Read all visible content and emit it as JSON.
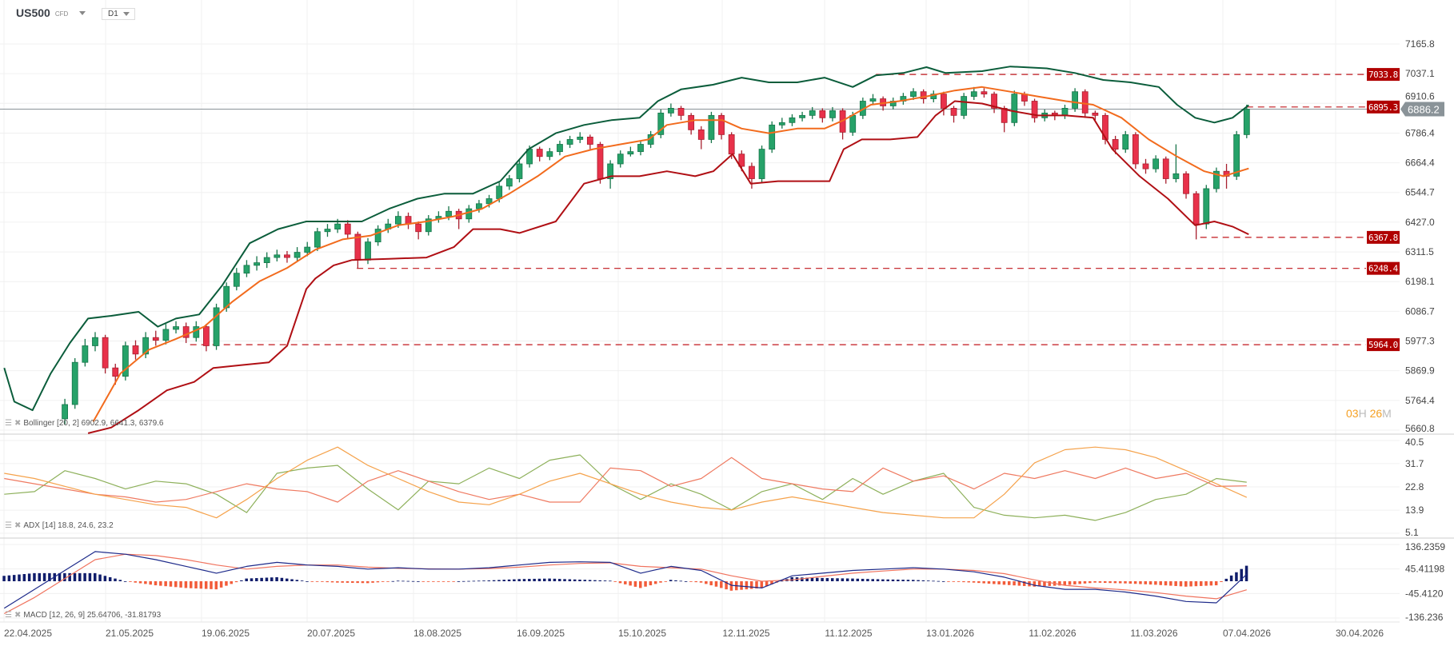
{
  "header": {
    "symbol": "US500",
    "instrument_type": "CFD",
    "timeframe": "D1"
  },
  "colors": {
    "up": "#26a269",
    "down": "#e8314a",
    "bb_upper": "#0b5d3b",
    "bb_middle": "#f26b1d",
    "bb_lower": "#b00f14",
    "level": "#c0161b",
    "last_price": "#8a9398",
    "adx": "#f5a24b",
    "plus_di": "#8db05a",
    "minus_di": "#ef7a61",
    "macd": "#1d2a8a",
    "signal": "#f0735e",
    "hist_pos": "#101d6b",
    "hist_neg": "#f25c3a"
  },
  "indicators": {
    "bollinger": {
      "label": "Bollinger [20, 2] 6902.9, 6641.3, 6379.6"
    },
    "adx": {
      "label": "ADX [14] 18.8, 24.6, 23.2"
    },
    "macd": {
      "label": "MACD [12, 26, 9] 25.64706, -31.81793"
    }
  },
  "countdown": {
    "hours": "03",
    "h": "H",
    "minutes": "26",
    "m": "M"
  },
  "chart_data": {
    "type": "candlestick",
    "price_scale": "log",
    "ylim": [
      5660.8,
      7165.8
    ],
    "y_ticks": [
      "7165.8",
      "7037.1",
      "6910.6",
      "6786.4",
      "6664.4",
      "6544.7",
      "6427.0",
      "6311.5",
      "6198.1",
      "6086.7",
      "5977.3",
      "5869.9",
      "5764.4",
      "5660.8"
    ],
    "x_ticks": [
      "22.04.2025",
      "21.05.2025",
      "19.06.2025",
      "20.07.2025",
      "18.08.2025",
      "16.09.2025",
      "15.10.2025",
      "12.11.2025",
      "11.12.2025",
      "13.01.2026",
      "11.02.2026",
      "11.03.2026",
      "07.04.2026",
      "30.04.2026"
    ],
    "last_price": "6886.2",
    "levels": [
      {
        "value": "7033.8",
        "from_bar": 80.3
      },
      {
        "value": "6895.3",
        "from_bar": 117
      },
      {
        "value": "6367.8",
        "from_bar": 112.4
      },
      {
        "value": "6248.4",
        "from_bar": 28.9
      },
      {
        "value": "5964.0",
        "from_bar": 12.4
      }
    ],
    "candles_ohlc": [
      [
        5700,
        5770,
        5680,
        5750
      ],
      [
        5750,
        5915,
        5735,
        5900
      ],
      [
        5900,
        5985,
        5885,
        5960
      ],
      [
        5960,
        6010,
        5940,
        5990
      ],
      [
        5990,
        6000,
        5860,
        5880
      ],
      [
        5880,
        5895,
        5820,
        5850
      ],
      [
        5850,
        5975,
        5835,
        5960
      ],
      [
        5960,
        5980,
        5910,
        5930
      ],
      [
        5930,
        6010,
        5915,
        5990
      ],
      [
        5990,
        6015,
        5960,
        5980
      ],
      [
        5980,
        6040,
        5965,
        6020
      ],
      [
        6020,
        6050,
        6005,
        6030
      ],
      [
        6030,
        6045,
        5970,
        5990
      ],
      [
        5990,
        6050,
        5975,
        6030
      ],
      [
        6030,
        6040,
        5940,
        5960
      ],
      [
        5960,
        6115,
        5945,
        6100
      ],
      [
        6100,
        6195,
        6085,
        6180
      ],
      [
        6180,
        6250,
        6165,
        6230
      ],
      [
        6230,
        6280,
        6215,
        6260
      ],
      [
        6260,
        6295,
        6240,
        6270
      ],
      [
        6270,
        6310,
        6250,
        6290
      ],
      [
        6290,
        6320,
        6275,
        6300
      ],
      [
        6300,
        6315,
        6270,
        6290
      ],
      [
        6290,
        6330,
        6275,
        6310
      ],
      [
        6310,
        6350,
        6295,
        6330
      ],
      [
        6330,
        6405,
        6315,
        6390
      ],
      [
        6390,
        6420,
        6370,
        6400
      ],
      [
        6400,
        6440,
        6385,
        6420
      ],
      [
        6420,
        6435,
        6360,
        6380
      ],
      [
        6380,
        6390,
        6250,
        6280
      ],
      [
        6280,
        6365,
        6265,
        6350
      ],
      [
        6350,
        6415,
        6335,
        6400
      ],
      [
        6400,
        6440,
        6385,
        6420
      ],
      [
        6420,
        6470,
        6405,
        6450
      ],
      [
        6450,
        6465,
        6400,
        6420
      ],
      [
        6420,
        6430,
        6360,
        6390
      ],
      [
        6390,
        6455,
        6375,
        6440
      ],
      [
        6440,
        6470,
        6425,
        6450
      ],
      [
        6450,
        6490,
        6435,
        6470
      ],
      [
        6470,
        6480,
        6400,
        6440
      ],
      [
        6440,
        6495,
        6425,
        6480
      ],
      [
        6480,
        6515,
        6465,
        6500
      ],
      [
        6500,
        6535,
        6485,
        6520
      ],
      [
        6520,
        6585,
        6505,
        6570
      ],
      [
        6570,
        6615,
        6555,
        6600
      ],
      [
        6600,
        6675,
        6585,
        6660
      ],
      [
        6660,
        6735,
        6645,
        6720
      ],
      [
        6720,
        6730,
        6670,
        6690
      ],
      [
        6690,
        6725,
        6675,
        6710
      ],
      [
        6710,
        6755,
        6695,
        6740
      ],
      [
        6740,
        6775,
        6725,
        6760
      ],
      [
        6760,
        6790,
        6745,
        6770
      ],
      [
        6770,
        6780,
        6720,
        6740
      ],
      [
        6740,
        6750,
        6580,
        6600
      ],
      [
        6600,
        6675,
        6560,
        6660
      ],
      [
        6660,
        6715,
        6645,
        6700
      ],
      [
        6700,
        6730,
        6690,
        6710
      ],
      [
        6710,
        6755,
        6695,
        6740
      ],
      [
        6740,
        6795,
        6725,
        6780
      ],
      [
        6780,
        6885,
        6765,
        6870
      ],
      [
        6870,
        6910,
        6855,
        6890
      ],
      [
        6890,
        6900,
        6840,
        6860
      ],
      [
        6860,
        6870,
        6780,
        6800
      ],
      [
        6800,
        6815,
        6720,
        6760
      ],
      [
        6760,
        6875,
        6745,
        6860
      ],
      [
        6860,
        6870,
        6760,
        6780
      ],
      [
        6780,
        6790,
        6680,
        6700
      ],
      [
        6700,
        6715,
        6630,
        6650
      ],
      [
        6650,
        6665,
        6560,
        6600
      ],
      [
        6600,
        6735,
        6585,
        6720
      ],
      [
        6720,
        6835,
        6705,
        6820
      ],
      [
        6820,
        6850,
        6805,
        6830
      ],
      [
        6830,
        6865,
        6815,
        6850
      ],
      [
        6850,
        6875,
        6835,
        6860
      ],
      [
        6860,
        6895,
        6845,
        6880
      ],
      [
        6880,
        6890,
        6830,
        6850
      ],
      [
        6850,
        6895,
        6835,
        6880
      ],
      [
        6880,
        6890,
        6760,
        6790
      ],
      [
        6790,
        6875,
        6775,
        6860
      ],
      [
        6860,
        6935,
        6845,
        6920
      ],
      [
        6920,
        6950,
        6905,
        6930
      ],
      [
        6930,
        6940,
        6880,
        6900
      ],
      [
        6900,
        6935,
        6885,
        6920
      ],
      [
        6920,
        6955,
        6905,
        6940
      ],
      [
        6940,
        6975,
        6925,
        6960
      ],
      [
        6960,
        6970,
        6910,
        6930
      ],
      [
        6930,
        6965,
        6915,
        6950
      ],
      [
        6950,
        6960,
        6860,
        6890
      ],
      [
        6890,
        6900,
        6830,
        6860
      ],
      [
        6860,
        6955,
        6845,
        6940
      ],
      [
        6940,
        6980,
        6925,
        6960
      ],
      [
        6960,
        6975,
        6935,
        6950
      ],
      [
        6950,
        6960,
        6870,
        6890
      ],
      [
        6890,
        6900,
        6790,
        6830
      ],
      [
        6830,
        6965,
        6815,
        6950
      ],
      [
        6950,
        6960,
        6900,
        6920
      ],
      [
        6920,
        6930,
        6830,
        6850
      ],
      [
        6850,
        6885,
        6835,
        6870
      ],
      [
        6870,
        6880,
        6840,
        6860
      ],
      [
        6860,
        6905,
        6845,
        6890
      ],
      [
        6890,
        6975,
        6875,
        6960
      ],
      [
        6960,
        6970,
        6850,
        6870
      ],
      [
        6870,
        6880,
        6840,
        6860
      ],
      [
        6860,
        6870,
        6740,
        6760
      ],
      [
        6760,
        6775,
        6700,
        6720
      ],
      [
        6720,
        6795,
        6705,
        6780
      ],
      [
        6780,
        6790,
        6640,
        6660
      ],
      [
        6660,
        6680,
        6620,
        6640
      ],
      [
        6640,
        6695,
        6625,
        6680
      ],
      [
        6680,
        6690,
        6580,
        6600
      ],
      [
        6600,
        6740,
        6585,
        6620
      ],
      [
        6620,
        6630,
        6520,
        6540
      ],
      [
        6540,
        6550,
        6360,
        6420
      ],
      [
        6420,
        6575,
        6400,
        6560
      ],
      [
        6560,
        6645,
        6545,
        6630
      ],
      [
        6630,
        6660,
        6560,
        6610
      ],
      [
        6610,
        6795,
        6595,
        6780
      ],
      [
        6780,
        6905,
        6765,
        6886
      ]
    ],
    "bollinger_upper": [
      [
        -6,
        5880
      ],
      [
        -5,
        5760
      ],
      [
        -3.2,
        5730
      ],
      [
        -1.4,
        5860
      ],
      [
        0.5,
        5970
      ],
      [
        2.3,
        6060
      ],
      [
        4.6,
        6070
      ],
      [
        7.3,
        6085
      ],
      [
        9.2,
        6030
      ],
      [
        11,
        6060
      ],
      [
        13.3,
        6075
      ],
      [
        15.6,
        6185
      ],
      [
        18.3,
        6345
      ],
      [
        21.1,
        6400
      ],
      [
        23.9,
        6430
      ],
      [
        26.6,
        6430
      ],
      [
        29.4,
        6430
      ],
      [
        32.1,
        6480
      ],
      [
        34.9,
        6520
      ],
      [
        37.6,
        6540
      ],
      [
        40.4,
        6540
      ],
      [
        43.1,
        6590
      ],
      [
        45.9,
        6720
      ],
      [
        48.6,
        6786
      ],
      [
        51.4,
        6820
      ],
      [
        54.1,
        6840
      ],
      [
        56.9,
        6850
      ],
      [
        58.7,
        6920
      ],
      [
        61,
        6970
      ],
      [
        64.2,
        6990
      ],
      [
        67,
        7020
      ],
      [
        69.7,
        7000
      ],
      [
        72.5,
        7000
      ],
      [
        75.2,
        7020
      ],
      [
        78,
        6980
      ],
      [
        80.3,
        7030
      ],
      [
        83,
        7040
      ],
      [
        85.3,
        7065
      ],
      [
        87.2,
        7040
      ],
      [
        90.8,
        7048
      ],
      [
        93.6,
        7068
      ],
      [
        97.2,
        7060
      ],
      [
        100,
        7040
      ],
      [
        102.8,
        7010
      ],
      [
        105.5,
        7000
      ],
      [
        108.3,
        6980
      ],
      [
        110.1,
        6905
      ],
      [
        111.9,
        6850
      ],
      [
        113.8,
        6830
      ],
      [
        115.6,
        6850
      ],
      [
        117.2,
        6902.9
      ]
    ],
    "bollinger_middle": [
      [
        2.8,
        5690
      ],
      [
        5.5,
        5860
      ],
      [
        8.3,
        5945
      ],
      [
        11,
        5985
      ],
      [
        13.8,
        6030
      ],
      [
        16.5,
        6120
      ],
      [
        19.3,
        6200
      ],
      [
        22,
        6250
      ],
      [
        24.8,
        6320
      ],
      [
        27.5,
        6360
      ],
      [
        30.3,
        6375
      ],
      [
        33,
        6415
      ],
      [
        35.8,
        6430
      ],
      [
        38.5,
        6450
      ],
      [
        41.3,
        6480
      ],
      [
        44,
        6540
      ],
      [
        46.8,
        6610
      ],
      [
        49.5,
        6690
      ],
      [
        52.3,
        6720
      ],
      [
        55,
        6740
      ],
      [
        57.8,
        6760
      ],
      [
        59.6,
        6820
      ],
      [
        62.4,
        6840
      ],
      [
        65.1,
        6840
      ],
      [
        67,
        6805
      ],
      [
        69.7,
        6786
      ],
      [
        72.5,
        6805
      ],
      [
        75.2,
        6805
      ],
      [
        77.1,
        6840
      ],
      [
        79.8,
        6905
      ],
      [
        82.6,
        6920
      ],
      [
        85.3,
        6940
      ],
      [
        88.1,
        6965
      ],
      [
        90.8,
        6980
      ],
      [
        93.6,
        6960
      ],
      [
        96.3,
        6940
      ],
      [
        99.1,
        6920
      ],
      [
        101.8,
        6905
      ],
      [
        104.6,
        6850
      ],
      [
        107.3,
        6760
      ],
      [
        110.1,
        6690
      ],
      [
        112.8,
        6630
      ],
      [
        114.7,
        6610
      ],
      [
        117.2,
        6641.3
      ]
    ],
    "bollinger_lower": [
      [
        2.3,
        5650
      ],
      [
        4.6,
        5670
      ],
      [
        7.3,
        5730
      ],
      [
        10.1,
        5800
      ],
      [
        12.8,
        5830
      ],
      [
        14.7,
        5880
      ],
      [
        17.4,
        5890
      ],
      [
        20.2,
        5900
      ],
      [
        22,
        5960
      ],
      [
        23.9,
        6170
      ],
      [
        24.8,
        6210
      ],
      [
        26.6,
        6260
      ],
      [
        28.4,
        6280
      ],
      [
        32.1,
        6285
      ],
      [
        35.8,
        6290
      ],
      [
        38.5,
        6330
      ],
      [
        40.4,
        6400
      ],
      [
        43.1,
        6400
      ],
      [
        45,
        6385
      ],
      [
        48.6,
        6430
      ],
      [
        51.4,
        6580
      ],
      [
        54.1,
        6610
      ],
      [
        56.9,
        6610
      ],
      [
        59.6,
        6630
      ],
      [
        62.4,
        6610
      ],
      [
        64.2,
        6630
      ],
      [
        66.1,
        6700
      ],
      [
        67.9,
        6580
      ],
      [
        70.6,
        6590
      ],
      [
        73.4,
        6590
      ],
      [
        75.7,
        6590
      ],
      [
        77.1,
        6720
      ],
      [
        78.9,
        6760
      ],
      [
        81.7,
        6760
      ],
      [
        84.4,
        6770
      ],
      [
        86.2,
        6860
      ],
      [
        88.1,
        6920
      ],
      [
        90.8,
        6910
      ],
      [
        93.6,
        6880
      ],
      [
        96.3,
        6860
      ],
      [
        99.1,
        6860
      ],
      [
        101.8,
        6850
      ],
      [
        103.7,
        6720
      ],
      [
        106.4,
        6610
      ],
      [
        109.2,
        6520
      ],
      [
        111.9,
        6415
      ],
      [
        113.8,
        6430
      ],
      [
        115.6,
        6410
      ],
      [
        117.2,
        6379.6
      ]
    ],
    "adx_panel": {
      "ylim": [
        5.1,
        40.5
      ],
      "y_ticks": [
        "40.5",
        "31.7",
        "22.8",
        "13.9",
        "5.1"
      ],
      "bar_start": -6,
      "bar_step": 3,
      "adx": [
        28,
        26,
        23,
        20,
        18,
        16,
        15,
        11,
        18,
        26,
        33,
        38,
        31,
        26,
        21,
        17,
        16,
        20,
        25,
        28,
        24,
        20,
        17,
        15,
        14,
        17,
        19,
        17,
        15,
        13,
        12,
        11,
        11,
        20,
        32,
        37,
        38,
        37,
        34,
        29,
        24,
        18.8
      ],
      "plus_di": [
        20,
        21,
        29,
        26,
        22,
        25,
        24,
        20,
        13,
        28,
        30,
        31,
        22,
        14,
        25,
        24,
        30,
        26,
        33,
        35,
        24,
        18,
        24,
        20,
        14,
        21,
        24,
        18,
        26,
        20,
        25,
        28,
        15,
        12,
        11,
        12,
        10,
        13,
        18,
        20,
        26,
        24.6
      ],
      "minus_di": [
        26,
        24,
        22,
        20,
        19,
        17,
        18,
        21,
        24,
        22,
        21,
        17,
        25,
        29,
        25,
        21,
        18,
        20,
        17,
        17,
        30,
        29,
        23,
        26,
        34,
        26,
        24,
        22,
        21,
        30,
        25,
        27,
        22,
        28,
        26,
        29,
        26,
        30,
        26,
        28,
        23,
        23.2
      ]
    },
    "macd_panel": {
      "ylim": [
        -136.236,
        136.2359
      ],
      "y_ticks": [
        "136.2359",
        "45.41198",
        "-45.4120",
        "-136.236"
      ],
      "bar_start": -6,
      "bar_step": 3,
      "macd": [
        -100,
        -30,
        40,
        110,
        100,
        80,
        55,
        30,
        55,
        70,
        60,
        55,
        45,
        50,
        45,
        45,
        50,
        60,
        70,
        72,
        70,
        30,
        55,
        40,
        -15,
        -25,
        20,
        30,
        40,
        45,
        50,
        45,
        35,
        15,
        -15,
        -30,
        -30,
        -40,
        -55,
        -75,
        -80,
        25.65
      ],
      "signal": [
        -120,
        -60,
        10,
        80,
        100,
        95,
        80,
        60,
        45,
        55,
        60,
        60,
        52,
        48,
        46,
        45,
        47,
        52,
        60,
        66,
        68,
        55,
        50,
        45,
        20,
        0,
        5,
        18,
        30,
        38,
        45,
        45,
        40,
        28,
        5,
        -15,
        -25,
        -32,
        -42,
        -55,
        -65,
        -31.82
      ]
    }
  }
}
